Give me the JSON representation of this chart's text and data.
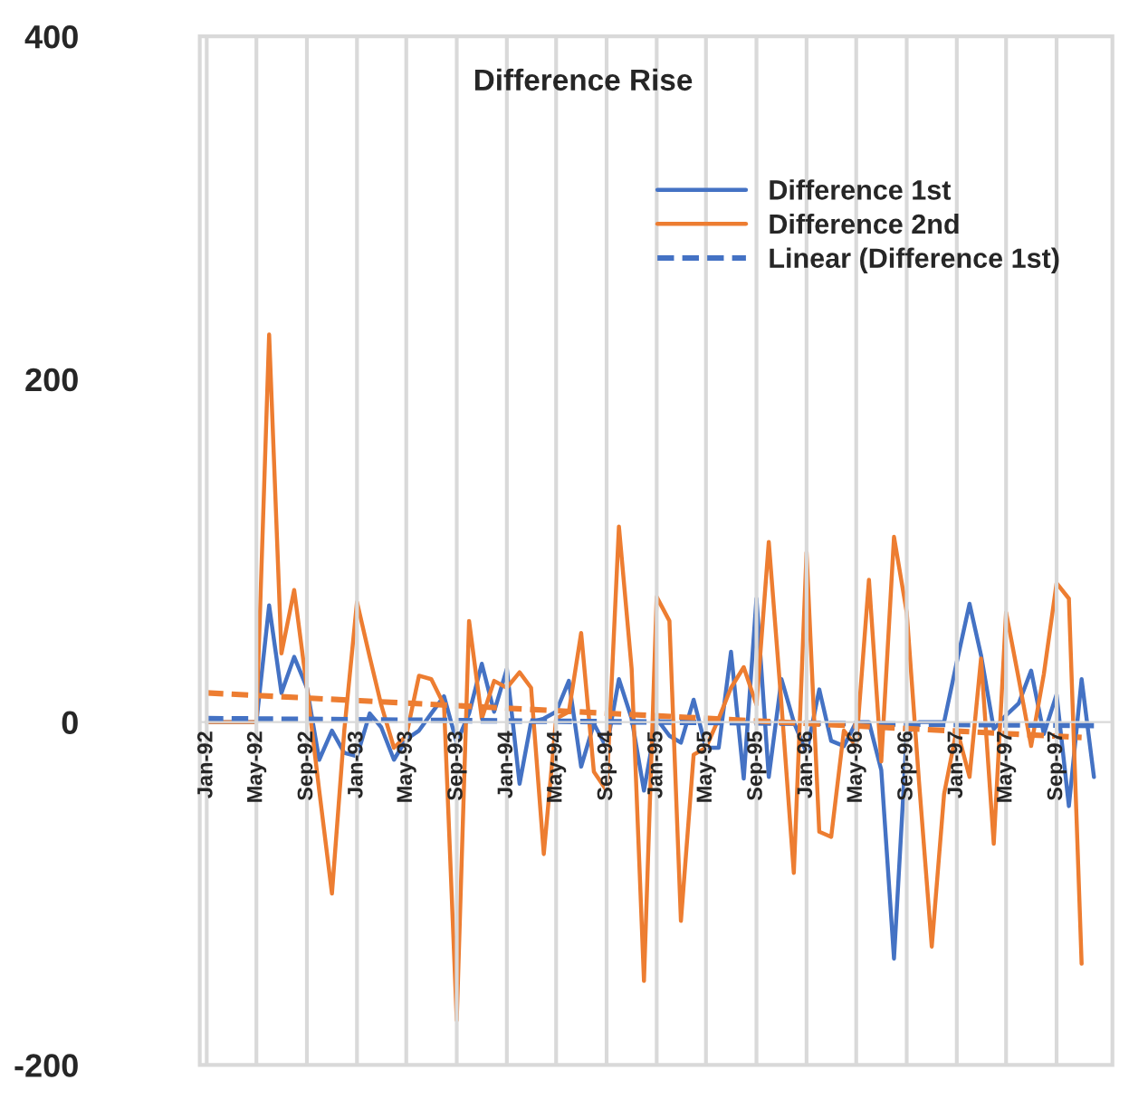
{
  "chart_data": {
    "type": "line",
    "title": "Difference Rise",
    "x": [
      "1992-01",
      "1992-02",
      "1992-03",
      "1992-04",
      "1992-05",
      "1992-06",
      "1992-07",
      "1992-08",
      "1992-09",
      "1992-10",
      "1992-11",
      "1992-12",
      "1993-01",
      "1993-02",
      "1993-03",
      "1993-04",
      "1993-05",
      "1993-06",
      "1993-07",
      "1993-08",
      "1993-09",
      "1993-10",
      "1993-11",
      "1993-12",
      "1994-01",
      "1994-02",
      "1994-03",
      "1994-04",
      "1994-05",
      "1994-06",
      "1994-07",
      "1994-08",
      "1994-09",
      "1994-10",
      "1994-11",
      "1994-12",
      "1995-01",
      "1995-02",
      "1995-03",
      "1995-04",
      "1995-05",
      "1995-06",
      "1995-07",
      "1995-08",
      "1995-09",
      "1995-10",
      "1995-11",
      "1995-12",
      "1996-01",
      "1996-02",
      "1996-03",
      "1996-04",
      "1996-05",
      "1996-06",
      "1996-07",
      "1996-08",
      "1996-09",
      "1996-10",
      "1996-11",
      "1996-12",
      "1997-01",
      "1997-02",
      "1997-03",
      "1997-04",
      "1997-05",
      "1997-06",
      "1997-07",
      "1997-08",
      "1997-09",
      "1997-10",
      "1997-11",
      "1997-12"
    ],
    "series": [
      {
        "name": "Difference 1st",
        "color": "#4472c4",
        "values": [
          0,
          0,
          0,
          0,
          0,
          68,
          17,
          38,
          20,
          -22,
          -5,
          -18,
          -20,
          5,
          -3,
          -22,
          -10,
          -5,
          5,
          15,
          -12,
          5,
          34,
          6,
          31,
          -36,
          0,
          2,
          6,
          24,
          -26,
          -1,
          -15,
          25,
          2,
          -40,
          2,
          -8,
          -12,
          13,
          -15,
          -15,
          41,
          -33,
          72,
          -32,
          25,
          0,
          -18,
          19,
          -11,
          -14,
          0,
          0,
          -28,
          -138,
          -7,
          0,
          0,
          0,
          35,
          69,
          39,
          -4,
          4,
          11,
          30,
          -7,
          16,
          -49,
          25,
          -32
        ]
      },
      {
        "name": "Difference 2nd",
        "color": "#ed7d31",
        "values": [
          0,
          0,
          0,
          0,
          0,
          226,
          40,
          77,
          20,
          -40,
          -100,
          -5,
          70,
          38,
          10,
          -15,
          -8,
          27,
          25,
          10,
          -174,
          59,
          2,
          24,
          20,
          29,
          20,
          -77,
          2,
          6,
          52,
          -29,
          -40,
          114,
          31,
          -151,
          73,
          59,
          -116,
          -19,
          -15,
          2,
          20,
          32,
          10,
          105,
          10,
          -88,
          99,
          -64,
          -67,
          -5,
          -14,
          83,
          -23,
          108,
          64,
          -35,
          -131,
          -42,
          -4,
          -32,
          37,
          -71,
          64,
          25,
          -14,
          28,
          81,
          72,
          -141,
          null
        ]
      },
      {
        "name": "Linear (Difference 1st)",
        "color": "#4472c4",
        "line_style": "dashed",
        "x": [
          "1992-01",
          "1997-12"
        ],
        "values": [
          2,
          -2
        ]
      },
      {
        "color": "#ed7d31",
        "line_style": "dashed",
        "x": [
          "1992-01",
          "1997-11"
        ],
        "values": [
          17,
          -9
        ]
      }
    ],
    "xlim": [
      "1991-12-15",
      "1998-01-15"
    ],
    "xticks": [
      {
        "value": "1992-01",
        "label": "Jan-92"
      },
      {
        "value": "1992-05",
        "label": "May-92"
      },
      {
        "value": "1992-09",
        "label": "Sep-92"
      },
      {
        "value": "1993-01",
        "label": "Jan-93"
      },
      {
        "value": "1993-05",
        "label": "May-93"
      },
      {
        "value": "1993-09",
        "label": "Sep-93"
      },
      {
        "value": "1994-01",
        "label": "Jan-94"
      },
      {
        "value": "1994-05",
        "label": "May-94"
      },
      {
        "value": "1994-09",
        "label": "Sep-94"
      },
      {
        "value": "1995-01",
        "label": "Jan-95"
      },
      {
        "value": "1995-05",
        "label": "May-95"
      },
      {
        "value": "1995-09",
        "label": "Sep-95"
      },
      {
        "value": "1996-01",
        "label": "Jan-96"
      },
      {
        "value": "1996-05",
        "label": "May-96"
      },
      {
        "value": "1996-09",
        "label": "Sep-96"
      },
      {
        "value": "1997-01",
        "label": "Jan-97"
      },
      {
        "value": "1997-05",
        "label": "May-97"
      },
      {
        "value": "1997-09",
        "label": "Sep-97"
      }
    ],
    "ylim": [
      -200,
      400
    ],
    "yticks": [
      -200,
      0,
      200,
      400
    ],
    "grid": "x",
    "legend": "top right",
    "line_style": "solid",
    "marker": "none"
  }
}
